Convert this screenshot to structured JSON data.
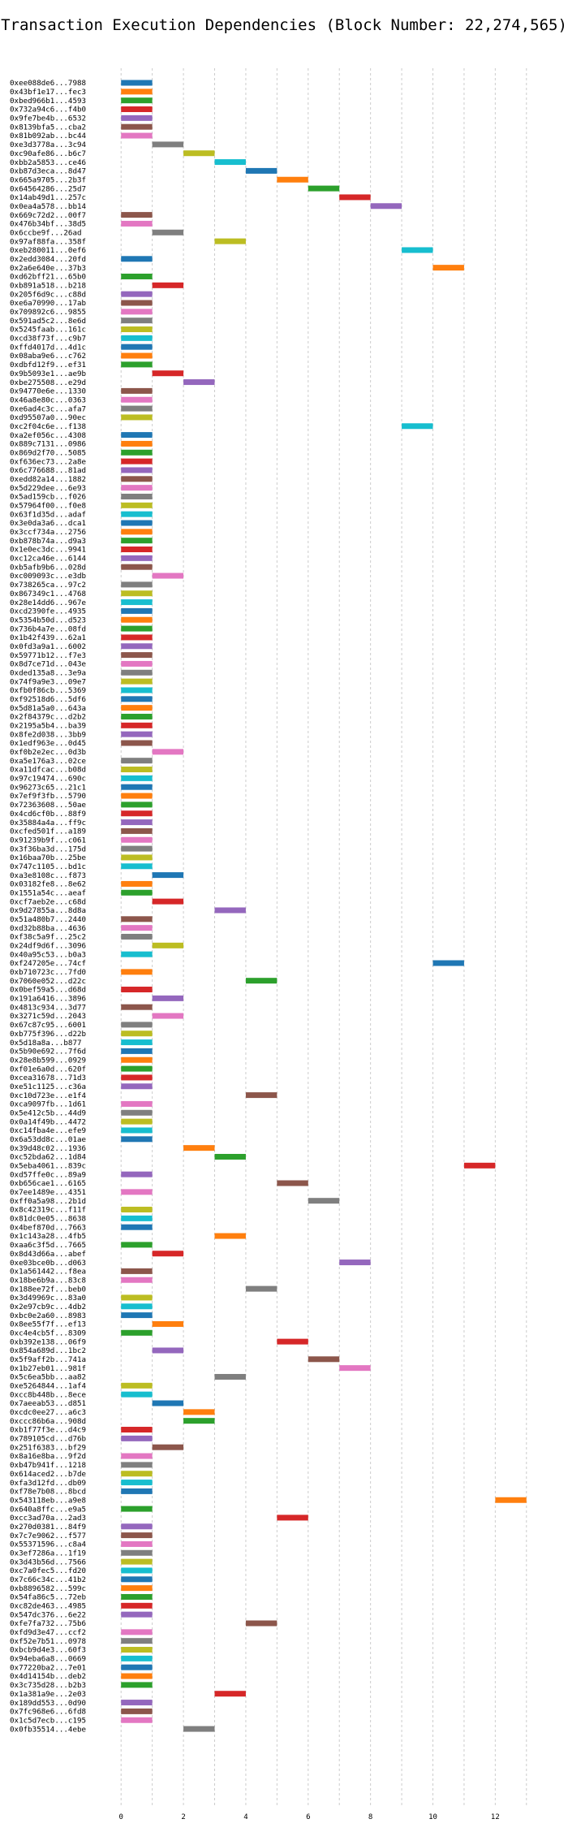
{
  "chart_data": {
    "type": "bar",
    "orientation": "horizontal-gantt",
    "title": "Transaction Execution Dependencies (Block Number: 22,274,565)",
    "xlabel": "",
    "ylabel": "",
    "xlim": [
      -0.5,
      13.5
    ],
    "x_ticks": [
      0,
      2,
      4,
      6,
      8,
      10,
      12
    ],
    "grid": "x-dashed",
    "bar_duration": 1,
    "palette": [
      "#1f77b4",
      "#ff7f0e",
      "#2ca02c",
      "#d62728",
      "#9467bd",
      "#8c564b",
      "#e377c2",
      "#7f7f7f",
      "#bcbd22",
      "#17becf"
    ],
    "categories": [
      "0xee088de6...7988",
      "0x43bf1e17...fec3",
      "0xbed966b1...4593",
      "0x732a94c6...f4b0",
      "0x9fe7be4b...6532",
      "0x8139bfa5...cba2",
      "0x81b092ab...bc44",
      "0xe3d3778a...3c94",
      "0xc90afe86...b6c7",
      "0xbb2a5853...ce46",
      "0xb87d3eca...8d47",
      "0x665a9705...2b3f",
      "0x64564286...25d7",
      "0x14ab49d1...257c",
      "0x0ea4a578...bb14",
      "0x669c72d2...00f7",
      "0x476b34bf...38d5",
      "0x6ccbe9f...26ad",
      "0x97af88fa...358f",
      "0xeb280011...0ef6",
      "0x2edd3084...20fd",
      "0x2a6e640e...37b3",
      "0xd62bff21...65b0",
      "0xb891a518...b218",
      "0x205f6d9c...c88d",
      "0xe6a70990...17ab",
      "0x709892c6...9855",
      "0x591ad5c2...8e6d",
      "0x5245faab...161c",
      "0xcd38f73f...c9b7",
      "0xffd4017d...4d1c",
      "0x08aba9e6...c762",
      "0xdbfd12f9...ef31",
      "0x9b5093e1...ae9b",
      "0xbe275508...e29d",
      "0x94770e6e...1330",
      "0x46a8e80c...0363",
      "0xe6ad4c3c...afa7",
      "0xd95507a0...90ec",
      "0xc2f04c6e...f138",
      "0xa2ef056c...4308",
      "0x889c7131...0986",
      "0x869d2f70...5085",
      "0xf636ec73...2a8e",
      "0x6c776688...81ad",
      "0xedd82a14...1882",
      "0x5d229dee...6e93",
      "0x5ad159cb...f026",
      "0x57964f00...f0e8",
      "0x63f1d35d...adaf",
      "0x3e0da3a6...dca1",
      "0x3ccf734a...2756",
      "0xb878b74a...d9a3",
      "0x1e0ec3dc...9941",
      "0xc12ca46e...6144",
      "0xb5afb9b6...028d",
      "0xc009093c...e3db",
      "0x738265ca...97c2",
      "0x867349c1...4768",
      "0x28e14dd6...967e",
      "0xcd2390fe...4935",
      "0x5354b50d...d523",
      "0x736b4a7e...08fd",
      "0x1b42f439...62a1",
      "0x0fd3a9a1...6002",
      "0x59771b12...f7e3",
      "0x8d7ce71d...043e",
      "0xded135a8...3e9a",
      "0x74f9a9e3...09e7",
      "0xfb0f86cb...5369",
      "0xf92518d6...5df6",
      "0x5d81a5a0...643a",
      "0x2f84379c...d2b2",
      "0x2195a5b4...ba39",
      "0x8fe2d038...3bb9",
      "0x1edf963e...0d45",
      "0xf0b2e2ec...0d3b",
      "0xa5e176a3...02ce",
      "0xa11dfcac...b08d",
      "0x97c19474...690c",
      "0x96273c65...21c1",
      "0x7ef9f3fb...5790",
      "0x72363608...50ae",
      "0x4cd6cf0b...88f9",
      "0x35884a4a...ff9c",
      "0xcfed501f...a189",
      "0x91239b9f...c061",
      "0x3f36ba3d...175d",
      "0x16baa70b...25be",
      "0x747c1105...bd1c",
      "0xa3e8108c...f873",
      "0x03182fe8...8e62",
      "0x1551a54c...aeaf",
      "0xcf7aeb2e...c68d",
      "0x9d27855a...8d8a",
      "0x51a480b7...2440",
      "0xd32b88ba...4636",
      "0xf38c5a9f...25c2",
      "0x24df9d6f...3096",
      "0x40a95c53...b0a3",
      "0xf247205e...74cf",
      "0xb710723c...7fd0",
      "0x7060e052...d22c",
      "0x0bef59a5...d68d",
      "0x191a6416...3896",
      "0x4813c934...3d77",
      "0x3271c59d...2043",
      "0x67c87c95...6001",
      "0xb775f396...d22b",
      "0x5d18a8a...b877",
      "0x5b90e692...7f6d",
      "0x28e8b599...0929",
      "0xf01e6a0d...620f",
      "0xcea31678...71d3",
      "0xe51c1125...c36a",
      "0xc10d723e...e1f4",
      "0xca9097fb...1d61",
      "0x5e412c5b...44d9",
      "0x0a14f49b...4472",
      "0xc14fba4e...efe9",
      "0x6a53dd8c...01ae",
      "0x39d48c02...1936",
      "0xc52bda62...1d84",
      "0x5eba4061...839c",
      "0xd57ffe0c...89a9",
      "0xb656cae1...6165",
      "0x7ee1489e...4351",
      "0xff0a5a98...2b1d",
      "0x8c42319c...f11f",
      "0x81dc0e05...8638",
      "0x4bef870d...7663",
      "0x1c143a28...4fb5",
      "0xaa6c3f5d...7665",
      "0x8d43d66a...abef",
      "0xe03bce0b...d063",
      "0x1a561442...f8ea",
      "0x18be6b9a...83c8",
      "0x188ee72f...beb0",
      "0x3d49969c...83a0",
      "0x2e97cb9c...4db2",
      "0xbc0e2a60...8983",
      "0x8ee55f7f...ef13",
      "0xc4e4cb5f...8309",
      "0xb392e138...06f9",
      "0x854a689d...1bc2",
      "0x5f9aff2b...741a",
      "0x1b27eb01...981f",
      "0x5c6ea5bb...aa82",
      "0xe5264844...1af4",
      "0xcc8b448b...8ece",
      "0x7aeeab53...d851",
      "0xcdc0ee27...a6c3",
      "0xccc86b6a...908d",
      "0xb1f77f3e...d4c9",
      "0x789105cd...d76b",
      "0x251f6383...bf29",
      "0x8a16e8ba...9f2d",
      "0xb47b941f...1218",
      "0x614aced2...b7de",
      "0xfa3d12fd...db09",
      "0xf78e7b08...8bcd",
      "0x543118eb...a9e8",
      "0x640a8ffc...e9a5",
      "0xcc3ad70a...2ad3",
      "0x270d0381...84f9",
      "0x7c7e9062...f577",
      "0x55371596...c8a4",
      "0x3ef7286a...1f19",
      "0x3d43b56d...7566",
      "0xc7a0fec5...fd20",
      "0x7c66c34c...41b2",
      "0xb8896582...599c",
      "0x54fa86c5...72eb",
      "0xc82de463...4985",
      "0x547dc376...6e22",
      "0xfe7fa732...75b6",
      "0xfd9d3e47...ccf2",
      "0xf52e7b51...0978",
      "0xbcb9d4e3...60f3",
      "0x94eba6a8...0669",
      "0x77220ba2...7e01",
      "0x4d14154b...deb2",
      "0x3c735d28...b2b3",
      "0x1a381a9e...2e03",
      "0x189dd553...0d90",
      "0x7fc968e6...6fd8",
      "0x1c5d7ecb...c195",
      "0x0fb35514...4ebe"
    ],
    "start_times": [
      0,
      0,
      0,
      0,
      0,
      0,
      0,
      1,
      2,
      3,
      4,
      5,
      6,
      7,
      8,
      0,
      0,
      1,
      3,
      9,
      0,
      10,
      0,
      1,
      0,
      0,
      0,
      0,
      0,
      0,
      0,
      0,
      0,
      1,
      2,
      0,
      0,
      0,
      0,
      9,
      0,
      0,
      0,
      0,
      0,
      0,
      0,
      0,
      0,
      0,
      0,
      0,
      0,
      0,
      0,
      0,
      1,
      0,
      0,
      0,
      0,
      0,
      0,
      0,
      0,
      0,
      0,
      0,
      0,
      0,
      0,
      0,
      0,
      0,
      0,
      0,
      1,
      0,
      0,
      0,
      0,
      0,
      0,
      0,
      0,
      0,
      0,
      0,
      0,
      0,
      1,
      0,
      0,
      1,
      3,
      0,
      0,
      0,
      1,
      0,
      10,
      0,
      4,
      0,
      1,
      0,
      1,
      0,
      0,
      0,
      0,
      0,
      0,
      0,
      0,
      4,
      0,
      0,
      0,
      0,
      0,
      2,
      3,
      11,
      0,
      5,
      0,
      6,
      0,
      0,
      0,
      3,
      0,
      1,
      7,
      0,
      0,
      4,
      0,
      0,
      0,
      1,
      0,
      5,
      1,
      6,
      7,
      3,
      0,
      0,
      1,
      2,
      2,
      0,
      0,
      1,
      0,
      0,
      0,
      0,
      0,
      12,
      0,
      5,
      0,
      0,
      0,
      0,
      0,
      0,
      0,
      0,
      0,
      0,
      0,
      4,
      0,
      0,
      0,
      0,
      0,
      0,
      0,
      3,
      0,
      0,
      0,
      2
    ]
  }
}
